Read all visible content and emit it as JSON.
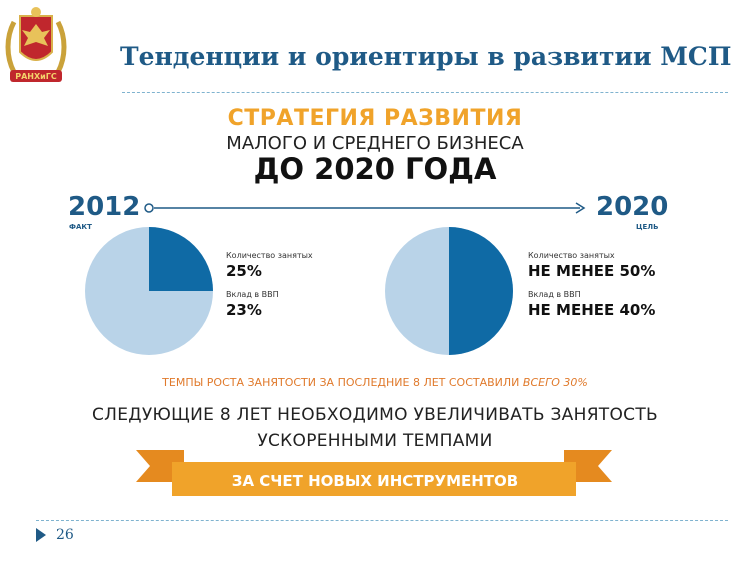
{
  "header": {
    "title": "Тенденции и ориентиры в развитии МСП",
    "logo_text": "РАНХиГС"
  },
  "infographic": {
    "heading_line1": "СТРАТЕГИЯ РАЗВИТИЯ",
    "heading_line2": "МАЛОГО И СРЕДНЕГО БИЗНЕСА",
    "heading_line3": "ДО 2020 ГОДА",
    "left": {
      "year": "2012",
      "tag": "ФАКТ",
      "employment_label": "Количество занятых",
      "employment_value": "25%",
      "gdp_label": "Вклад в ВВП",
      "gdp_value": "23%",
      "pie_share": 0.25
    },
    "right": {
      "year": "2020",
      "tag": "ЦЕЛЬ",
      "employment_label": "Количество занятых",
      "employment_value": "НЕ МЕНЕЕ 50%",
      "gdp_label": "Вклад в ВВП",
      "gdp_value": "НЕ МЕНЕЕ 40%",
      "pie_share": 0.5
    },
    "growth_note": "ТЕМПЫ РОСТА ЗАНЯТОСТИ ЗА ПОСЛЕДНИЕ 8 ЛЕТ СОСТАВИЛИ",
    "growth_note_emph": "ВСЕГО 30%",
    "call_line1": "СЛЕДУЮЩИЕ 8 ЛЕТ НЕОБХОДИМО УВЕЛИЧИВАТЬ ЗАНЯТОСТЬ",
    "call_line2": "УСКОРЕННЫМИ ТЕМПАМИ",
    "banner": "ЗА СЧЕТ НОВЫХ ИНСТРУМЕНТОВ"
  },
  "footer": {
    "page_number": "26"
  },
  "colors": {
    "dark_blue": "#1f5a86",
    "pie_dark": "#0f6aa5",
    "pie_light": "#b9d3e8",
    "orange": "#f0a32a",
    "orange_dark": "#e58a1f"
  }
}
